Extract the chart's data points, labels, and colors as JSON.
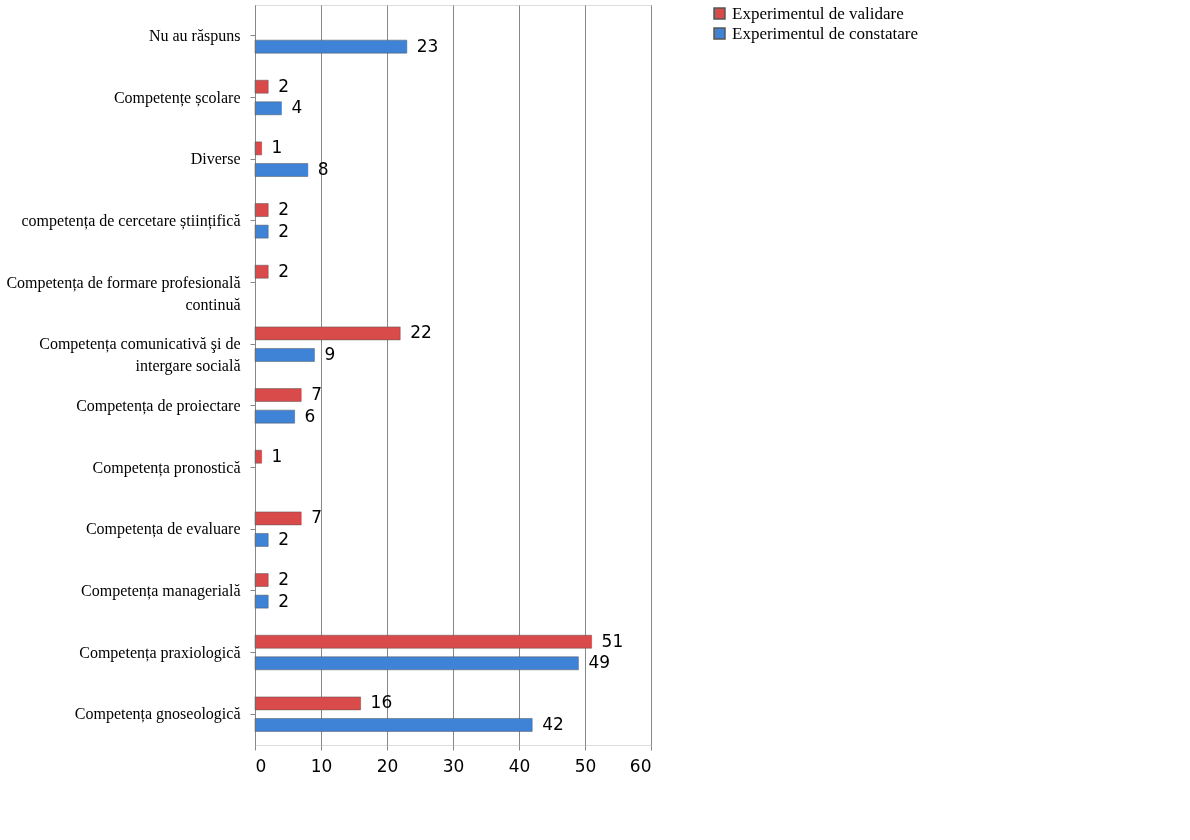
{
  "chart_data": {
    "type": "bar",
    "orientation": "horizontal",
    "categories": [
      "Nu au răspuns",
      "Competențe școlare",
      "Diverse",
      "competența de cercetare științifică",
      "Competența de formare profesională continuă",
      "Competența comunicativă şi de intergare socială",
      "Competența de proiectare",
      "Competența pronostică",
      "Competența de evaluare",
      "Competența managerială",
      "Competența praxiologică",
      "Competența gnoseologică"
    ],
    "series": [
      {
        "name": "Experimentul de validare",
        "color": "#d94a4a",
        "values": [
          null,
          2,
          1,
          2,
          2,
          22,
          7,
          1,
          7,
          2,
          51,
          16
        ]
      },
      {
        "name": "Experimentul de constatare",
        "color": "#3f83d6",
        "values": [
          23,
          4,
          8,
          2,
          null,
          9,
          6,
          null,
          2,
          2,
          49,
          42
        ]
      }
    ],
    "xlim": [
      0,
      60
    ],
    "xticks": [
      0,
      10,
      20,
      30,
      40,
      50,
      60
    ],
    "grid": "x",
    "legend": "right",
    "data_labels": true
  }
}
